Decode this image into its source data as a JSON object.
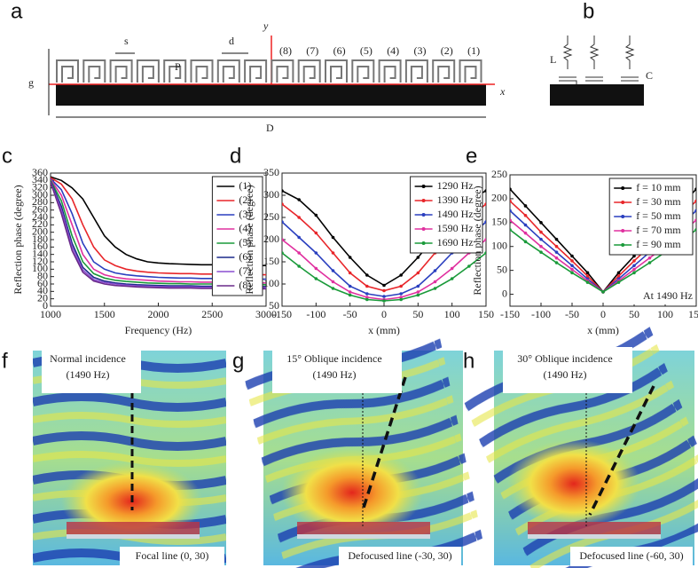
{
  "panel_labels": [
    "a",
    "b",
    "c",
    "d",
    "e",
    "f",
    "g",
    "h"
  ],
  "diagram_a": {
    "s": "s",
    "d": "d",
    "p": "P",
    "y_axis": "y",
    "x_axis": "x",
    "g": "g",
    "D": "D",
    "cells": [
      "(8)",
      "(7)",
      "(6)",
      "(5)",
      "(4)",
      "(3)",
      "(2)",
      "(1)"
    ]
  },
  "diagram_b": {
    "L": "L",
    "C": "C"
  },
  "chart_data": [
    {
      "type": "line",
      "xlabel": "Frequency (Hz)",
      "ylabel": "Reflection phase (degree)",
      "x": [
        1000,
        1100,
        1200,
        1300,
        1400,
        1500,
        1600,
        1700,
        1800,
        1900,
        2000,
        2100,
        2200,
        2300,
        2400,
        2500,
        2600,
        2700,
        2800,
        2900,
        3000
      ],
      "xlim": [
        1000,
        3000
      ],
      "xticks": [
        1000,
        1500,
        2000,
        2500,
        3000
      ],
      "ylim": [
        0,
        360
      ],
      "yticks": [
        0,
        20,
        40,
        60,
        80,
        100,
        120,
        140,
        160,
        180,
        200,
        220,
        240,
        260,
        280,
        300,
        320,
        340,
        360
      ],
      "legend": "upper right",
      "markers": false,
      "series": [
        {
          "name": "(1)",
          "color": "#000000",
          "values": [
            350,
            340,
            320,
            290,
            240,
            190,
            160,
            140,
            128,
            120,
            117,
            115,
            114,
            113,
            112,
            112,
            111,
            111,
            110,
            110,
            110
          ]
        },
        {
          "name": "(2)",
          "color": "#e8262a",
          "values": [
            348,
            330,
            290,
            220,
            160,
            125,
            110,
            100,
            95,
            92,
            90,
            89,
            88,
            88,
            87,
            87,
            86,
            86,
            85,
            85,
            85
          ]
        },
        {
          "name": "(3)",
          "color": "#2a3fbf",
          "values": [
            345,
            315,
            250,
            170,
            120,
            100,
            90,
            85,
            82,
            80,
            78,
            77,
            76,
            76,
            75,
            75,
            74,
            74,
            73,
            73,
            73
          ]
        },
        {
          "name": "(4)",
          "color": "#e0309f",
          "values": [
            343,
            300,
            220,
            140,
            100,
            85,
            78,
            74,
            72,
            70,
            68,
            67,
            66,
            66,
            65,
            65,
            64,
            64,
            64,
            63,
            63
          ]
        },
        {
          "name": "(5)",
          "color": "#1a9a3a",
          "values": [
            340,
            285,
            190,
            120,
            88,
            76,
            70,
            67,
            65,
            63,
            62,
            61,
            61,
            60,
            60,
            60,
            59,
            59,
            59,
            59,
            58
          ]
        },
        {
          "name": "(6)",
          "color": "#1c2a8a",
          "values": [
            338,
            270,
            170,
            105,
            78,
            68,
            63,
            60,
            58,
            57,
            56,
            55,
            55,
            55,
            54,
            54,
            54,
            54,
            53,
            53,
            53
          ]
        },
        {
          "name": "(7)",
          "color": "#8a4fd0",
          "values": [
            336,
            260,
            160,
            98,
            72,
            64,
            60,
            57,
            55,
            54,
            53,
            52,
            52,
            52,
            51,
            51,
            51,
            51,
            50,
            50,
            50
          ]
        },
        {
          "name": "(8)",
          "color": "#6a2a8a",
          "values": [
            335,
            250,
            150,
            92,
            68,
            60,
            56,
            54,
            52,
            51,
            50,
            49,
            49,
            49,
            48,
            48,
            48,
            48,
            47,
            47,
            47
          ]
        }
      ]
    },
    {
      "type": "line",
      "xlabel": "x (mm)",
      "ylabel": "Reflection phase (degree)",
      "x": [
        -150,
        -125,
        -100,
        -75,
        -50,
        -25,
        0,
        25,
        50,
        75,
        100,
        125,
        150
      ],
      "xlim": [
        -150,
        150
      ],
      "xticks": [
        -150,
        -100,
        -50,
        0,
        50,
        100,
        150
      ],
      "ylim": [
        50,
        350
      ],
      "yticks": [
        50,
        100,
        150,
        200,
        250,
        300,
        350
      ],
      "legend": "upper right",
      "markers": true,
      "series": [
        {
          "name": "1290 Hz",
          "color": "#000000",
          "values": [
            310,
            290,
            255,
            205,
            160,
            120,
            97,
            120,
            160,
            205,
            255,
            290,
            310
          ]
        },
        {
          "name": "1390 Hz",
          "color": "#e8262a",
          "values": [
            280,
            250,
            215,
            170,
            125,
            95,
            85,
            95,
            125,
            170,
            215,
            250,
            280
          ]
        },
        {
          "name": "1490 Hz",
          "color": "#2a3fbf",
          "values": [
            240,
            205,
            170,
            130,
            95,
            78,
            72,
            78,
            95,
            130,
            170,
            205,
            240
          ]
        },
        {
          "name": "1590 Hz",
          "color": "#e0309f",
          "values": [
            200,
            170,
            135,
            105,
            82,
            70,
            65,
            70,
            82,
            105,
            135,
            170,
            200
          ]
        },
        {
          "name": "1690 Hz",
          "color": "#1a9a3a",
          "values": [
            170,
            140,
            112,
            90,
            75,
            65,
            62,
            65,
            75,
            90,
            112,
            140,
            170
          ]
        }
      ]
    },
    {
      "type": "line",
      "xlabel": "x (mm)",
      "ylabel": "Reflection phase (degree)",
      "annotation": "At 1490 Hz",
      "x": [
        -150,
        -125,
        -100,
        -75,
        -50,
        -25,
        0,
        25,
        50,
        75,
        100,
        125,
        150
      ],
      "xlim": [
        -150,
        150
      ],
      "xticks": [
        -150,
        -100,
        -50,
        0,
        50,
        100,
        150
      ],
      "ylim": [
        -25,
        250
      ],
      "yticks": [
        0,
        50,
        100,
        150,
        200,
        250
      ],
      "legend": "upper right",
      "markers": true,
      "series": [
        {
          "name": "f = 10 mm",
          "color": "#000000",
          "values": [
            220,
            185,
            150,
            115,
            80,
            45,
            5,
            45,
            80,
            115,
            150,
            185,
            220
          ]
        },
        {
          "name": "f = 30 mm",
          "color": "#e8262a",
          "values": [
            195,
            165,
            130,
            100,
            70,
            38,
            5,
            38,
            70,
            100,
            130,
            165,
            195
          ]
        },
        {
          "name": "f = 50 mm",
          "color": "#2a3fbf",
          "values": [
            175,
            145,
            115,
            88,
            60,
            32,
            5,
            32,
            60,
            88,
            115,
            145,
            175
          ]
        },
        {
          "name": "f = 70 mm",
          "color": "#e0309f",
          "values": [
            155,
            128,
            100,
            76,
            52,
            28,
            5,
            28,
            52,
            76,
            100,
            128,
            155
          ]
        },
        {
          "name": "f = 90 mm",
          "color": "#1a9a3a",
          "values": [
            135,
            110,
            88,
            66,
            45,
            25,
            5,
            25,
            45,
            66,
            88,
            110,
            135
          ]
        }
      ]
    }
  ],
  "fields": [
    {
      "title": "Normal incidence",
      "frequency": "(1490 Hz)",
      "caption": "Focal line (0, 30)"
    },
    {
      "title": "15° Oblique incidence",
      "frequency": "(1490 Hz)",
      "caption": "Defocused line (-30, 30)"
    },
    {
      "title": "30° Oblique incidence",
      "frequency": "(1490 Hz)",
      "caption": "Defocused line (-60, 30)"
    }
  ]
}
